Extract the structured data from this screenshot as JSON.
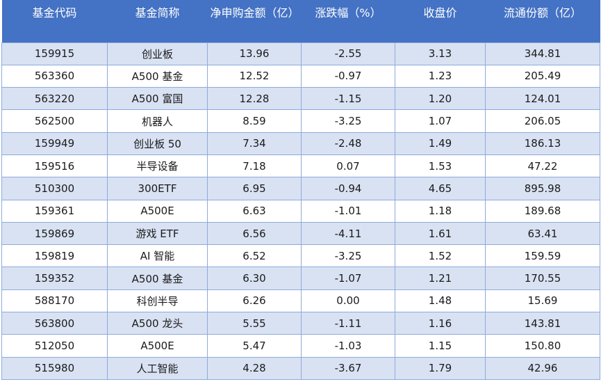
{
  "table": {
    "columns": [
      "基金代码",
      "基金简称",
      "净申购金额（亿）",
      "涨跌幅（%）",
      "收盘价",
      "流通份额（亿）"
    ],
    "rows": [
      [
        "159915",
        "创业板",
        "13.96",
        "-2.55",
        "3.13",
        "344.81"
      ],
      [
        "563360",
        "A500 基金",
        "12.52",
        "-0.97",
        "1.23",
        "205.49"
      ],
      [
        "563220",
        "A500 富国",
        "12.28",
        "-1.15",
        "1.20",
        "124.01"
      ],
      [
        "562500",
        "机器人",
        "8.59",
        "-3.25",
        "1.07",
        "206.05"
      ],
      [
        "159949",
        "创业板 50",
        "7.34",
        "-2.48",
        "1.49",
        "186.13"
      ],
      [
        "159516",
        "半导设备",
        "7.18",
        "0.07",
        "1.53",
        "47.22"
      ],
      [
        "510300",
        "300ETF",
        "6.95",
        "-0.94",
        "4.65",
        "895.98"
      ],
      [
        "159361",
        "A500E",
        "6.63",
        "-1.01",
        "1.18",
        "189.68"
      ],
      [
        "159869",
        "游戏 ETF",
        "6.56",
        "-4.11",
        "1.61",
        "63.41"
      ],
      [
        "159819",
        "AI 智能",
        "6.52",
        "-3.25",
        "1.52",
        "159.59"
      ],
      [
        "159352",
        "A500 基金",
        "6.30",
        "-1.07",
        "1.21",
        "170.55"
      ],
      [
        "588170",
        "科创半导",
        "6.26",
        "0.00",
        "1.48",
        "15.69"
      ],
      [
        "563800",
        "A500 龙头",
        "5.55",
        "-1.11",
        "1.16",
        "143.81"
      ],
      [
        "512050",
        "A500E",
        "5.47",
        "-1.03",
        "1.15",
        "150.80"
      ],
      [
        "515980",
        "人工智能",
        "4.28",
        "-3.67",
        "1.79",
        "42.96"
      ]
    ]
  }
}
